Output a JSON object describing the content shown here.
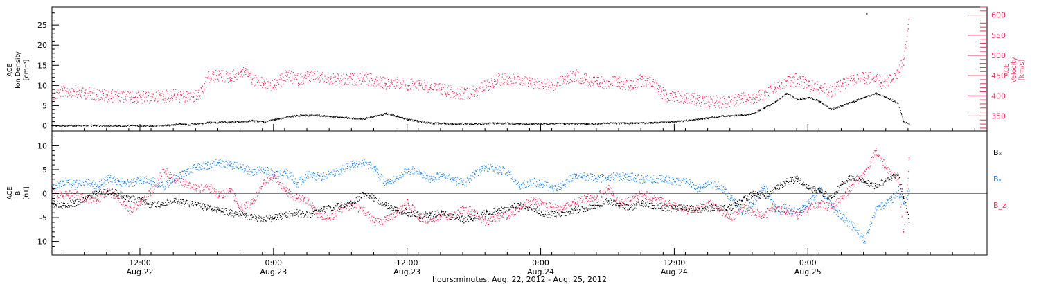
{
  "chart_data": [
    {
      "type": "scatter",
      "panel": "top",
      "ylabel_left": [
        "ACE",
        "Ion Density",
        "[cm⁻³]"
      ],
      "ylabel_right": [
        "ACE",
        "Velocity",
        "[km/s]"
      ],
      "ylim_left": [
        -1.3,
        29.5
      ],
      "ylim_right": [
        313,
        620
      ],
      "yticks_left": [
        0,
        5,
        10,
        15,
        20,
        25
      ],
      "yticks_right": [
        350,
        400,
        450,
        500,
        550,
        600
      ],
      "series": [
        {
          "axis": "left",
          "color": "#000000",
          "x": [
            0,
            2,
            4,
            6,
            8,
            10,
            11,
            11.5,
            12,
            13.5,
            14,
            16,
            18,
            19,
            20,
            22,
            24,
            26,
            28,
            30,
            32,
            34,
            36,
            38,
            40,
            42,
            44,
            46,
            48,
            50,
            52,
            54,
            56,
            58,
            60,
            62,
            63,
            64,
            65,
            66,
            67,
            68,
            69,
            70,
            71,
            72,
            73,
            74,
            75,
            76,
            76.5,
            77
          ],
          "y": [
            0,
            0,
            0,
            0,
            0,
            0,
            0.2,
            0.5,
            0.2,
            0.5,
            0.8,
            0.8,
            1.2,
            0.9,
            1.5,
            2.5,
            2.5,
            2.0,
            1.7,
            3.0,
            1.5,
            0.6,
            0.5,
            0.5,
            0.6,
            0.5,
            0.4,
            0.5,
            0.4,
            0.6,
            0.6,
            0.7,
            1.0,
            1.5,
            2.3,
            2.6,
            3.0,
            4.5,
            6.0,
            8.0,
            6.5,
            7.0,
            6.0,
            4.0,
            5.0,
            6.0,
            7.0,
            8.0,
            7.0,
            5.5,
            1.0,
            0.4
          ]
        },
        {
          "axis": "right",
          "color": "#e8325d",
          "x": [
            0,
            1,
            2,
            3,
            4,
            5,
            6,
            7,
            8,
            9,
            10,
            11,
            12,
            13,
            13.5,
            14,
            15,
            16,
            17,
            17.5,
            18,
            19,
            20,
            21,
            22,
            23,
            24,
            25,
            26,
            27,
            28,
            29,
            30,
            31,
            32,
            33,
            34,
            35,
            36,
            37,
            38,
            39,
            40,
            41,
            42,
            43,
            44,
            45,
            46,
            47,
            48,
            49,
            50,
            51,
            52,
            53,
            54,
            55,
            56,
            57,
            58,
            59,
            60,
            61,
            62,
            63,
            64,
            65,
            66,
            67,
            68,
            69,
            70,
            71,
            72,
            73,
            74,
            74.5,
            75,
            75.5,
            76,
            76.5,
            77
          ],
          "y": [
            400,
            412,
            410,
            407,
            403,
            400,
            398,
            396,
            395,
            397,
            398,
            402,
            395,
            400,
            410,
            445,
            450,
            445,
            460,
            462,
            440,
            430,
            425,
            450,
            440,
            448,
            445,
            440,
            438,
            440,
            445,
            435,
            430,
            433,
            425,
            430,
            420,
            415,
            410,
            405,
            412,
            425,
            440,
            443,
            440,
            430,
            432,
            425,
            440,
            450,
            440,
            430,
            435,
            432,
            425,
            440,
            435,
            400,
            398,
            395,
            390,
            385,
            385,
            385,
            393,
            395,
            405,
            420,
            435,
            440,
            425,
            420,
            410,
            430,
            440,
            445,
            440,
            432,
            435,
            440,
            460,
            490,
            590
          ]
        }
      ]
    },
    {
      "type": "scatter",
      "panel": "bottom",
      "ylabel_left": [
        "ACE",
        "B",
        "[nT]"
      ],
      "ylim": [
        -12.8,
        13.1
      ],
      "yticks": [
        -10,
        -5,
        0,
        5,
        10
      ],
      "zero_line": true,
      "series": [
        {
          "name": "Bₓ",
          "color": "#000000",
          "x": [
            0,
            1,
            2,
            3,
            4,
            5,
            6,
            7,
            8,
            9,
            10,
            11,
            12,
            13,
            14,
            15,
            16,
            17,
            18,
            19,
            20,
            21,
            22,
            23,
            24,
            25,
            26,
            27,
            28,
            29,
            30,
            31,
            32,
            33,
            34,
            35,
            36,
            37,
            38,
            39,
            40,
            41,
            42,
            43,
            44,
            45,
            46,
            47,
            48,
            49,
            50,
            51,
            52,
            53,
            54,
            55,
            56,
            57,
            58,
            59,
            60,
            61,
            62,
            63,
            64,
            65,
            66,
            67,
            68,
            69,
            70,
            71,
            72,
            73,
            74,
            75,
            76,
            76.5,
            77
          ],
          "y": [
            -2.0,
            -2.5,
            -2.0,
            -1.0,
            0.0,
            0.5,
            0.0,
            -1.0,
            -1.5,
            -2.5,
            -2.0,
            -1.5,
            -2.0,
            -2.5,
            -3.0,
            -3.5,
            -4.0,
            -4.5,
            -5.0,
            -5.5,
            -5.0,
            -4.5,
            -4.0,
            -4.5,
            -3.5,
            -3.0,
            -2.5,
            -2.0,
            0.0,
            -1.0,
            -2.5,
            -3.5,
            -4.0,
            -4.5,
            -4.5,
            -4.0,
            -5.0,
            -5.5,
            -5.0,
            -4.0,
            -3.5,
            -3.0,
            -2.5,
            -3.0,
            -4.0,
            -4.5,
            -4.0,
            -3.5,
            -3.0,
            -2.5,
            -1.5,
            -2.5,
            -3.0,
            -2.0,
            -2.5,
            -3.0,
            -3.0,
            -3.0,
            -3.5,
            -3.0,
            -3.0,
            -3.0,
            -1.5,
            0.0,
            -0.5,
            1.0,
            2.5,
            3.0,
            1.0,
            0.5,
            -1.0,
            2.5,
            3.5,
            2.5,
            1.5,
            3.0,
            4.0,
            -1.0,
            -6.0
          ]
        },
        {
          "name": "Bᵧ",
          "color": "#1e82e6",
          "x": [
            0,
            1,
            2,
            3,
            4,
            5,
            6,
            7,
            8,
            9,
            10,
            11,
            12,
            13,
            14,
            15,
            16,
            17,
            18,
            19,
            20,
            21,
            22,
            23,
            24,
            25,
            26,
            27,
            28,
            29,
            30,
            31,
            32,
            33,
            34,
            35,
            36,
            37,
            38,
            39,
            40,
            41,
            42,
            43,
            44,
            45,
            46,
            47,
            48,
            49,
            50,
            51,
            52,
            53,
            54,
            55,
            56,
            57,
            58,
            59,
            60,
            61,
            62,
            63,
            64,
            65,
            66,
            67,
            68,
            69,
            70,
            71,
            72,
            73,
            74,
            75,
            76,
            76.5,
            77
          ],
          "y": [
            1.5,
            2.5,
            2.0,
            2.5,
            1.5,
            3.0,
            2.5,
            2.0,
            3.0,
            2.5,
            1.5,
            3.0,
            4.5,
            5.5,
            6.0,
            6.5,
            6.0,
            5.5,
            4.5,
            5.0,
            4.0,
            4.5,
            2.0,
            4.0,
            3.5,
            4.0,
            5.0,
            6.0,
            6.5,
            5.0,
            2.0,
            3.5,
            5.0,
            4.5,
            3.0,
            4.0,
            3.0,
            2.0,
            4.0,
            5.5,
            5.0,
            4.5,
            1.5,
            2.5,
            2.0,
            1.0,
            2.0,
            4.0,
            3.5,
            3.0,
            3.5,
            3.5,
            3.5,
            3.0,
            3.0,
            3.0,
            2.5,
            2.5,
            1.0,
            2.0,
            1.5,
            -1.0,
            -4.0,
            -2.0,
            1.5,
            -3.5,
            -3.0,
            -4.0,
            -2.0,
            1.0,
            -2.5,
            -5.0,
            -7.0,
            -10.0,
            -3.0,
            -2.0,
            0.0,
            -2.0,
            0.5
          ]
        },
        {
          "name": "B_z",
          "color": "#e8325d",
          "x": [
            0,
            1,
            2,
            3,
            4,
            5,
            6,
            7,
            8,
            9,
            10,
            11,
            12,
            13,
            14,
            15,
            16,
            17,
            18,
            19,
            20,
            21,
            22,
            23,
            24,
            25,
            26,
            27,
            28,
            29,
            30,
            31,
            32,
            33,
            34,
            35,
            36,
            37,
            38,
            39,
            40,
            41,
            42,
            43,
            44,
            45,
            46,
            47,
            48,
            49,
            50,
            51,
            52,
            53,
            54,
            55,
            56,
            57,
            58,
            59,
            60,
            61,
            62,
            63,
            64,
            65,
            66,
            67,
            68,
            69,
            70,
            71,
            72,
            73,
            74,
            75,
            76,
            76.5,
            77
          ],
          "y": [
            0.5,
            -0.5,
            0.0,
            -1.0,
            -1.5,
            0.5,
            -1.0,
            -3.5,
            -2.0,
            0.5,
            5.0,
            3.0,
            2.0,
            1.0,
            1.5,
            -0.5,
            0.5,
            -3.0,
            -2.0,
            2.0,
            3.5,
            0.5,
            -1.0,
            -1.5,
            -4.5,
            -5.0,
            -3.0,
            -2.5,
            -3.5,
            -6.0,
            -5.5,
            -4.0,
            -2.0,
            -5.0,
            -5.5,
            -4.5,
            -5.0,
            -3.0,
            -4.0,
            -6.0,
            -5.0,
            -4.5,
            -3.0,
            -1.5,
            -2.0,
            -3.0,
            -3.0,
            -2.0,
            -1.0,
            -0.5,
            1.0,
            -2.0,
            -1.5,
            0.0,
            -1.0,
            -2.0,
            -2.5,
            -3.5,
            -3.0,
            -2.0,
            -3.5,
            -5.0,
            -3.0,
            -4.0,
            -4.5,
            -3.0,
            -4.0,
            -4.5,
            -3.0,
            -2.0,
            -3.0,
            -1.0,
            2.0,
            4.0,
            9.0,
            5.0,
            3.0,
            -8.0,
            7.5
          ]
        }
      ]
    }
  ],
  "x_axis": {
    "range_hours": [
      0,
      84
    ],
    "ticks": [
      {
        "x": 7.9,
        "time": "12:00",
        "date": "Aug.22"
      },
      {
        "x": 19.9,
        "time": "0:00",
        "date": "Aug.23"
      },
      {
        "x": 31.9,
        "time": "12:00",
        "date": "Aug.23"
      },
      {
        "x": 43.9,
        "time": "0:00",
        "date": "Aug.24"
      },
      {
        "x": 55.9,
        "time": "12:00",
        "date": "Aug.24"
      },
      {
        "x": 67.9,
        "time": "0:00",
        "date": "Aug.25"
      }
    ],
    "xlabel": "hours:minutes, Aug. 22, 2012 - Aug. 25, 2012"
  },
  "colors": {
    "black": "#000000",
    "pink": "#e8325d",
    "blue": "#1e82e6"
  }
}
